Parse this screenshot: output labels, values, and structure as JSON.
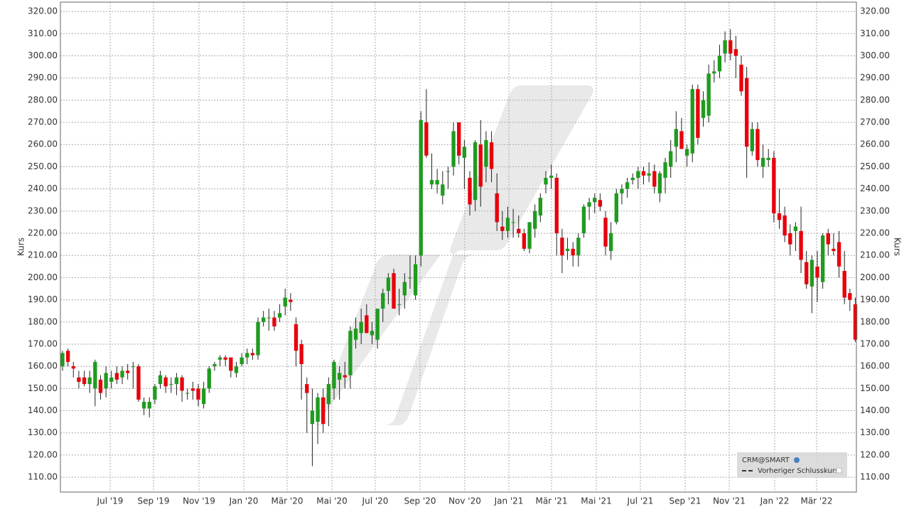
{
  "chart_data": {
    "type": "candlestick",
    "y_axis_label": "Kurs",
    "y2_axis_label": "Kurs",
    "legend": {
      "symbol": "CRM@SMART",
      "line": "Vorheriger Schlusskurs",
      "corner": "bottom-right"
    },
    "up_color": "#1f9b1f",
    "down_color": "#e8000b",
    "grid": true,
    "categories": [
      null,
      null,
      null,
      null,
      null,
      null,
      null,
      null,
      null,
      null,
      null,
      null,
      null,
      null,
      null,
      null,
      null,
      null,
      null,
      null,
      null,
      null,
      null,
      null,
      null,
      null,
      null,
      null,
      null,
      null,
      null,
      null,
      null,
      null,
      null,
      null,
      null,
      null,
      null,
      null,
      null,
      null,
      null,
      null,
      null,
      null,
      null,
      null,
      null,
      null,
      null,
      null,
      null,
      null,
      null,
      null,
      null,
      null,
      null,
      null,
      null,
      null,
      null,
      null,
      null,
      null,
      null,
      null,
      null,
      null,
      null,
      null,
      null,
      null,
      null,
      null,
      null,
      null,
      null,
      null,
      null,
      null,
      null,
      null,
      null,
      null,
      null,
      null,
      null,
      null,
      null,
      null,
      null,
      null,
      null,
      null,
      null,
      null,
      null,
      null,
      null,
      null,
      null,
      null,
      null,
      null,
      null,
      null,
      null,
      null,
      null,
      null,
      null,
      null,
      null,
      null,
      null,
      null,
      null,
      null,
      null,
      null,
      null,
      null,
      null,
      null,
      null,
      null,
      null,
      null,
      null,
      null,
      null,
      null,
      null,
      null,
      null,
      null,
      null,
      null,
      null,
      null,
      null,
      null,
      null,
      null,
      null
    ],
    "open": [
      160,
      167,
      160,
      155,
      155,
      152,
      150,
      154,
      150,
      153,
      157,
      155,
      158,
      160,
      160,
      141,
      141,
      145,
      152,
      155,
      152,
      152,
      155,
      148,
      150,
      150,
      143,
      150,
      160,
      163,
      164,
      164,
      157,
      161,
      164,
      166,
      165,
      180,
      182,
      182,
      182,
      187,
      190,
      179,
      170,
      152,
      134,
      135,
      146,
      143,
      150,
      154,
      156,
      156,
      172,
      175,
      183,
      174,
      172,
      186,
      194,
      202,
      188,
      192,
      200,
      192,
      210,
      270,
      242,
      242,
      237,
      248,
      250,
      270,
      254,
      245,
      235,
      260,
      250,
      261,
      238,
      223,
      221,
      225,
      222,
      220,
      213,
      222,
      228,
      242,
      245,
      245,
      218,
      212,
      213,
      210,
      220,
      232,
      234,
      235,
      227,
      212,
      225,
      238,
      240,
      244,
      245,
      248,
      246,
      248,
      238,
      245,
      250,
      259,
      266,
      255,
      256,
      285,
      272,
      273,
      292,
      293,
      301,
      307,
      303,
      296,
      290,
      257,
      267,
      250,
      253,
      254,
      229,
      228,
      220,
      221,
      221,
      207,
      196,
      205,
      198,
      220,
      213,
      216,
      203,
      193,
      188
    ],
    "high": [
      167,
      168,
      162,
      158,
      158,
      158,
      163,
      156,
      160,
      158,
      160,
      160,
      161,
      162,
      161,
      146,
      146,
      152,
      158,
      156,
      155,
      157,
      156,
      150,
      153,
      152,
      153,
      160,
      162,
      165,
      165,
      164,
      162,
      166,
      168,
      168,
      182,
      185,
      186,
      185,
      188,
      195,
      193,
      182,
      172,
      155,
      150,
      148,
      150,
      155,
      163,
      160,
      162,
      178,
      182,
      186,
      188,
      180,
      186,
      195,
      202,
      204,
      195,
      202,
      210,
      210,
      275,
      285,
      256,
      249,
      248,
      250,
      270,
      270,
      262,
      248,
      262,
      271,
      266,
      266,
      247,
      230,
      232,
      231,
      228,
      222,
      224,
      233,
      238,
      248,
      251,
      247,
      222,
      218,
      216,
      220,
      233,
      236,
      238,
      238,
      230,
      225,
      240,
      242,
      245,
      247,
      250,
      250,
      252,
      251,
      248,
      254,
      262,
      275,
      272,
      260,
      287,
      287,
      284,
      296,
      298,
      305,
      311,
      312,
      309,
      300,
      295,
      270,
      270,
      260,
      258,
      257,
      240,
      232,
      224,
      225,
      232,
      212,
      210,
      212,
      220,
      222,
      220,
      221,
      212,
      195,
      191
    ],
    "low": [
      158,
      160,
      155,
      150,
      151,
      148,
      142,
      145,
      146,
      150,
      152,
      152,
      154,
      150,
      144,
      138,
      137,
      143,
      150,
      148,
      148,
      147,
      144,
      145,
      145,
      142,
      141,
      148,
      158,
      160,
      160,
      155,
      155,
      160,
      161,
      163,
      163,
      178,
      176,
      176,
      180,
      183,
      185,
      160,
      145,
      130,
      115,
      125,
      130,
      133,
      145,
      145,
      150,
      150,
      168,
      170,
      175,
      170,
      168,
      180,
      188,
      186,
      183,
      186,
      195,
      190,
      205,
      254,
      240,
      238,
      233,
      240,
      246,
      251,
      240,
      228,
      230,
      232,
      243,
      243,
      221,
      217,
      218,
      218,
      218,
      212,
      211,
      218,
      225,
      238,
      240,
      210,
      202,
      208,
      205,
      205,
      218,
      226,
      229,
      230,
      210,
      208,
      224,
      233,
      236,
      242,
      240,
      242,
      243,
      238,
      234,
      238,
      245,
      252,
      258,
      250,
      252,
      260,
      268,
      270,
      288,
      290,
      297,
      298,
      290,
      282,
      245,
      255,
      250,
      245,
      250,
      225,
      222,
      216,
      210,
      212,
      202,
      195,
      184,
      189,
      195,
      210,
      210,
      200,
      188,
      185,
      171
    ],
    "close": [
      166,
      162,
      159,
      153,
      152,
      155,
      162,
      148,
      157,
      155,
      154,
      158,
      157,
      160,
      145,
      144,
      144,
      151,
      156,
      151,
      152,
      155,
      149,
      148,
      149,
      145,
      150,
      159,
      161,
      164,
      163,
      158,
      160,
      164,
      166,
      165,
      180,
      182,
      182,
      178,
      184,
      191,
      189,
      167,
      161,
      148,
      140,
      146,
      134,
      152,
      162,
      157,
      155,
      176,
      177,
      180,
      175,
      176,
      186,
      193,
      200,
      186,
      188,
      198,
      200,
      206,
      271,
      255,
      244,
      244,
      242,
      248,
      266,
      255,
      259,
      233,
      261,
      241,
      262,
      249,
      225,
      221,
      227,
      225,
      220,
      213,
      225,
      230,
      236,
      245,
      246,
      220,
      210,
      213,
      210,
      218,
      232,
      234,
      236,
      232,
      214,
      220,
      238,
      240,
      243,
      245,
      248,
      246,
      247,
      241,
      247,
      252,
      257,
      267,
      258,
      258,
      285,
      263,
      280,
      292,
      293,
      300,
      307,
      301,
      300,
      284,
      259,
      267,
      253,
      254,
      254,
      229,
      226,
      219,
      215,
      223,
      208,
      197,
      208,
      200,
      219,
      215,
      212,
      205,
      191,
      190,
      172
    ],
    "xlim": [
      -0.39,
      146.2
    ],
    "xticks": [
      {
        "value": 8.77,
        "label": "Jul '19"
      },
      {
        "value": 16.75,
        "label": "Sep '19"
      },
      {
        "value": 25.13,
        "label": "Nov '19"
      },
      {
        "value": 33.38,
        "label": "Jan '20"
      },
      {
        "value": 41.36,
        "label": "Mär '20"
      },
      {
        "value": 49.61,
        "label": "Mai '20"
      },
      {
        "value": 57.59,
        "label": "Jul '20"
      },
      {
        "value": 65.84,
        "label": "Sep '20"
      },
      {
        "value": 74.08,
        "label": "Nov '20"
      },
      {
        "value": 82.2,
        "label": "Jan '21"
      },
      {
        "value": 90.05,
        "label": "Mär '21"
      },
      {
        "value": 98.3,
        "label": "Mai '21"
      },
      {
        "value": 106.41,
        "label": "Jul '21"
      },
      {
        "value": 114.66,
        "label": "Sep '21"
      },
      {
        "value": 122.77,
        "label": "Nov '21"
      },
      {
        "value": 131.15,
        "label": "Jan '22"
      },
      {
        "value": 138.87,
        "label": "Mär '22"
      }
    ],
    "ylim": [
      103.3,
      324.2
    ],
    "yticks": [
      {
        "value": 110,
        "label": "110.00"
      },
      {
        "value": 120,
        "label": "120.00"
      },
      {
        "value": 130,
        "label": "130.00"
      },
      {
        "value": 140,
        "label": "140.00"
      },
      {
        "value": 150,
        "label": "150.00"
      },
      {
        "value": 160,
        "label": "160.00"
      },
      {
        "value": 170,
        "label": "170.00"
      },
      {
        "value": 180,
        "label": "180.00"
      },
      {
        "value": 190,
        "label": "190.00"
      },
      {
        "value": 200,
        "label": "200.00"
      },
      {
        "value": 210,
        "label": "210.00"
      },
      {
        "value": 220,
        "label": "220.00"
      },
      {
        "value": 230,
        "label": "230.00"
      },
      {
        "value": 240,
        "label": "240.00"
      },
      {
        "value": 250,
        "label": "250.00"
      },
      {
        "value": 260,
        "label": "260.00"
      },
      {
        "value": 270,
        "label": "270.00"
      },
      {
        "value": 280,
        "label": "280.00"
      },
      {
        "value": 290,
        "label": "290.00"
      },
      {
        "value": 300,
        "label": "300.00"
      },
      {
        "value": 310,
        "label": "310.00"
      },
      {
        "value": 320,
        "label": "320.00"
      }
    ]
  }
}
